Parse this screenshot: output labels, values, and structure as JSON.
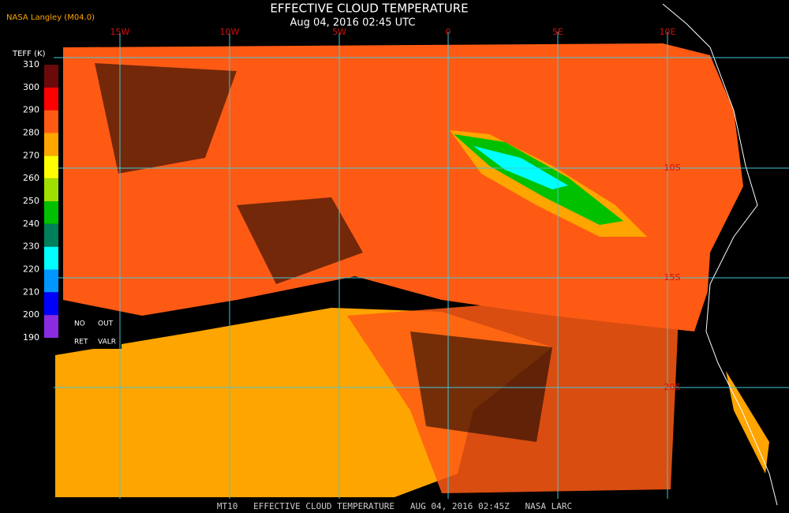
{
  "header": {
    "title": "EFFECTIVE CLOUD TEMPERATURE",
    "subtitle": "Aug 04, 2016 02:45 UTC",
    "source": "NASA Langley (M04.0)"
  },
  "legend": {
    "title": "TEFF (K)",
    "ticks": [
      310,
      300,
      290,
      280,
      270,
      260,
      250,
      240,
      230,
      220,
      210,
      200,
      190
    ],
    "colors": [
      "#6a0a0a",
      "#ff0000",
      "#ff5a14",
      "#ffa500",
      "#ffff00",
      "#a0e000",
      "#00c000",
      "#00805a",
      "#00ffff",
      "#0096ff",
      "#0000ff",
      "#8a2be2"
    ],
    "notes": [
      "NO",
      "OUT",
      "RET",
      "VALR"
    ]
  },
  "grid": {
    "lon_labels": [
      "15W",
      "10W",
      "5W",
      "0",
      "5E",
      "10E"
    ],
    "lat_labels": [
      "10S",
      "15S",
      "20S"
    ]
  },
  "footer": "MT10   EFFECTIVE CLOUD TEMPERATURE   AUG 04, 2016 02:45Z   NASA LARC"
}
